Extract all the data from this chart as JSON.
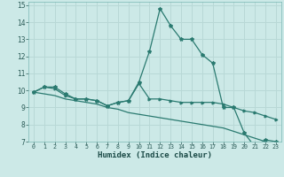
{
  "xlabel": "Humidex (Indice chaleur)",
  "xlim": [
    -0.5,
    23.5
  ],
  "ylim": [
    7,
    15.2
  ],
  "xticks": [
    0,
    1,
    2,
    3,
    4,
    5,
    6,
    7,
    8,
    9,
    10,
    11,
    12,
    13,
    14,
    15,
    16,
    17,
    18,
    19,
    20,
    21,
    22,
    23
  ],
  "yticks": [
    7,
    8,
    9,
    10,
    11,
    12,
    13,
    14,
    15
  ],
  "bg_color": "#cce9e7",
  "grid_color": "#b8d8d6",
  "line_color": "#2a7a70",
  "line1_y": [
    9.9,
    10.2,
    10.2,
    9.8,
    9.5,
    9.5,
    9.4,
    9.1,
    9.3,
    9.4,
    10.5,
    12.3,
    14.8,
    13.8,
    13.0,
    13.0,
    12.1,
    11.6,
    9.0,
    9.0,
    7.5,
    6.7,
    7.1,
    7.0
  ],
  "line2_y": [
    9.9,
    10.2,
    10.1,
    9.7,
    9.5,
    9.5,
    9.4,
    9.1,
    9.3,
    9.4,
    10.4,
    9.5,
    9.5,
    9.4,
    9.3,
    9.3,
    9.3,
    9.3,
    9.2,
    9.0,
    8.8,
    8.7,
    8.5,
    8.3
  ],
  "line3_y": [
    9.9,
    9.8,
    9.7,
    9.5,
    9.4,
    9.3,
    9.2,
    9.0,
    8.9,
    8.7,
    8.6,
    8.5,
    8.4,
    8.3,
    8.2,
    8.1,
    8.0,
    7.9,
    7.8,
    7.6,
    7.4,
    7.2,
    7.0,
    6.9
  ]
}
